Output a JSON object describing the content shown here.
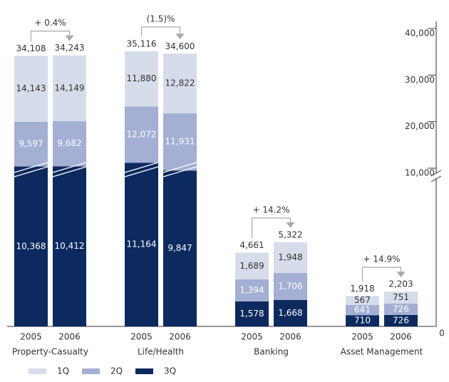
{
  "chart_data": {
    "type": "stacked_bar",
    "groups": [
      {
        "name": "Property-Casualty",
        "annotation": "+ 0.4%"
      },
      {
        "name": "Life/Health",
        "annotation": "(1.5)%"
      },
      {
        "name": "Banking",
        "annotation": "+ 14.2%"
      },
      {
        "name": "Asset Management",
        "annotation": "+ 14.9%"
      }
    ],
    "categories": [
      "2005",
      "2006",
      "2005",
      "2006",
      "2005",
      "2006",
      "2005",
      "2006"
    ],
    "series": [
      {
        "name": "3Q",
        "color": "#0c2a5f",
        "label_color": "#ffffff",
        "values": [
          10368,
          10412,
          11164,
          9847,
          1578,
          1668,
          710,
          726
        ],
        "value_labels": [
          "10,368",
          "10,412",
          "11,164",
          "9,847",
          "1,578",
          "1,668",
          "710",
          "726"
        ]
      },
      {
        "name": "2Q",
        "color": "#a3afd3",
        "label_color": "#ffffff",
        "values": [
          9597,
          9682,
          12072,
          11931,
          1394,
          1706,
          641,
          726
        ],
        "value_labels": [
          "9,597",
          "9,682",
          "12,072",
          "11,931",
          "1,394",
          "1,706",
          "641",
          "726"
        ]
      },
      {
        "name": "1Q",
        "color": "#d6dcea",
        "label_color": "#333333",
        "values": [
          14143,
          14149,
          11880,
          12822,
          1689,
          1948,
          567,
          751
        ],
        "value_labels": [
          "14,143",
          "14,149",
          "11,880",
          "12,822",
          "1,689",
          "1,948",
          "567",
          "751"
        ]
      }
    ],
    "totals": {
      "values": [
        34108,
        34243,
        35116,
        34600,
        4661,
        5322,
        1918,
        2203
      ],
      "value_labels": [
        "34,108",
        "34,243",
        "35,116",
        "34,600",
        "4,661",
        "5,322",
        "1,918",
        "2,203"
      ]
    },
    "ylim": [
      0,
      40000
    ],
    "axis_break": 10000,
    "yticks": [
      0,
      {
        "value": 10000,
        "label": "10,000"
      },
      {
        "value": 20000,
        "label": "20,000"
      },
      {
        "value": 30000,
        "label": "30,000"
      },
      {
        "value": 40000,
        "label": "40,000"
      }
    ]
  }
}
